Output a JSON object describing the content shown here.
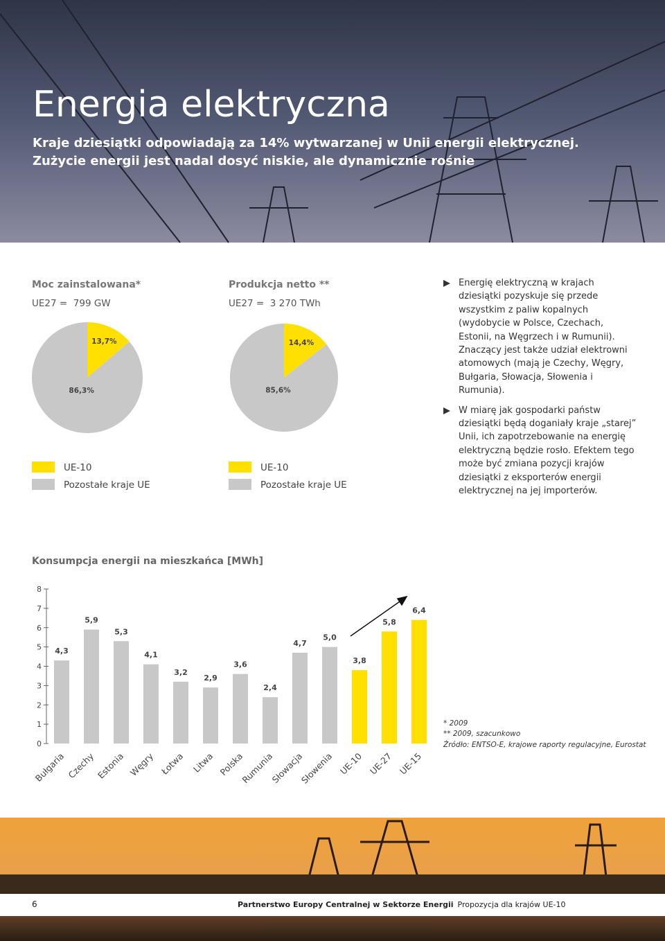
{
  "header": {
    "title": "Energia elektryczna",
    "subtitle": "Kraje dziesiątki odpowiadają za 14% wytwarzanej w Unii energii elektrycznej. Zużycie energii jest nadal dosyć niskie, ale dynamicznie rośnie"
  },
  "chart_data": [
    {
      "type": "pie",
      "title": "Moc zainstalowana*",
      "subtitle": "UE27 =  799 GW",
      "categories": [
        "UE-10",
        "Pozostałe kraje UE"
      ],
      "values": [
        13.7,
        86.3
      ],
      "value_labels": [
        "13,7%",
        "86,3%"
      ],
      "colors": [
        "#ffe000",
        "#c8c8c8"
      ]
    },
    {
      "type": "pie",
      "title": "Produkcja netto **",
      "subtitle": "UE27 =  3 270 TWh",
      "categories": [
        "UE-10",
        "Pozostałe kraje UE"
      ],
      "values": [
        14.4,
        85.6
      ],
      "value_labels": [
        "14,4%",
        "85,6%"
      ],
      "colors": [
        "#ffe000",
        "#c8c8c8"
      ]
    },
    {
      "type": "bar",
      "title": "Konsumpcja energii na mieszkańca [MWh]",
      "categories": [
        "Bułgaria",
        "Czechy",
        "Estonia",
        "Węgry",
        "Łotwa",
        "Litwa",
        "Polska",
        "Rumunia",
        "Słowacja",
        "Słowenia",
        "UE-10",
        "UE-27",
        "UE-15"
      ],
      "values": [
        4.3,
        5.9,
        5.3,
        4.1,
        3.2,
        2.9,
        3.6,
        2.4,
        4.7,
        5.0,
        3.8,
        5.8,
        6.4
      ],
      "value_labels": [
        "4,3",
        "5,9",
        "5,3",
        "4,1",
        "3,2",
        "2,9",
        "3,6",
        "2,4",
        "4,7",
        "5,0",
        "3,8",
        "5,8",
        "6,4"
      ],
      "colors": [
        "#c8c8c8",
        "#c8c8c8",
        "#c8c8c8",
        "#c8c8c8",
        "#c8c8c8",
        "#c8c8c8",
        "#c8c8c8",
        "#c8c8c8",
        "#c8c8c8",
        "#c8c8c8",
        "#ffe000",
        "#ffe000",
        "#ffe000"
      ],
      "ylim": [
        0,
        8
      ],
      "yticks": [
        0,
        1,
        2,
        3,
        4,
        5,
        6,
        7,
        8
      ]
    }
  ],
  "bullets": [
    "Energię elektryczną w krajach dziesiątki pozyskuje się przede wszystkim z paliw kopalnych (wydobycie w Polsce, Czechach, Estonii, na Węgrzech i w Rumunii). Znaczący jest także udział elektrowni atomowych (mają je Czechy, Węgry, Bułgaria, Słowacja, Słowenia i Rumunia).",
    "W miarę jak gospodarki państw dziesiątki będą doganiały kraje „starej” Unii, ich zapotrzebowanie na energię elektryczną będzie rosło. Efektem tego może być zmiana pozycji krajów dziesiątki z eksporterów energii elektrycznej na jej importerów."
  ],
  "notes": [
    "* 2009",
    "** 2009, szacunkowo",
    "Źródło: ENTSO-E, krajowe raporty regulacyjne, Eurostat"
  ],
  "footer": {
    "page": "6",
    "title": "Partnerstwo Europy Centralnej w Sektorze Energii",
    "subtitle": "Propozycja dla krajów UE-10"
  }
}
